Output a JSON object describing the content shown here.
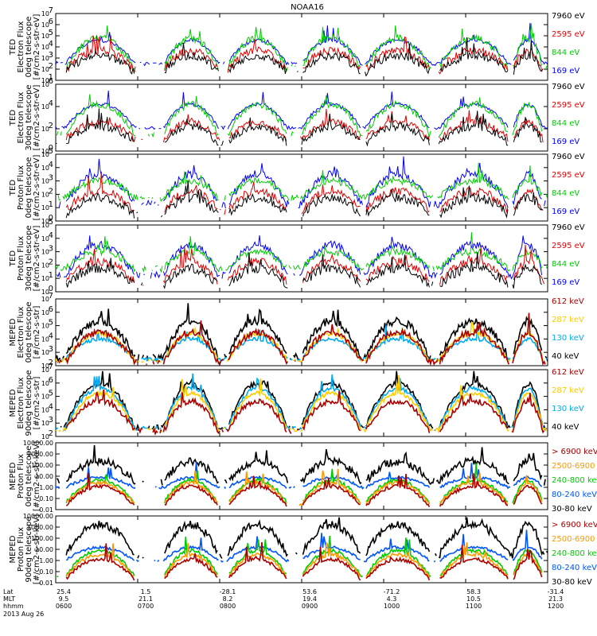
{
  "title": "NOAA16",
  "date_label": "2013 Aug 26",
  "x_axis": {
    "row_labels": [
      "Lat",
      "MLT",
      "hhmm"
    ],
    "tick_times": [
      "0600",
      "0700",
      "0800",
      "0900",
      "1000",
      "1100",
      "1200"
    ],
    "lat_values": [
      "25.4",
      "1.5",
      "-28.1",
      "53.6",
      "-71.2",
      "58.3",
      "-31.4"
    ],
    "mlt_values": [
      "9.5",
      "21.1",
      "8.2",
      "19.4",
      "4.3",
      "10.5",
      "21.3"
    ]
  },
  "colors": {
    "black": "#000000",
    "blue": "#0000ff",
    "red": "#e00000",
    "green": "#00cc00",
    "maroon": "#aa0000",
    "yellow": "#ffcc00",
    "cyan": "#00aaee",
    "orange": "#ff9900",
    "dgreen": "#00cc00",
    "lblue": "#0055ff"
  },
  "chart_data": [
    {
      "type": "line",
      "panel": "ted-electron-0deg",
      "ylabel": [
        "TED",
        "Electron Flux",
        "0deg telescope",
        "[#/cm2-s-str-eV]"
      ],
      "ylim": [
        1,
        10000000
      ],
      "yscale": "log",
      "ytick_labels": [
        "10^1",
        "10^2",
        "10^3",
        "10^4",
        "10^5",
        "10^6",
        "10^7"
      ],
      "ytick_exponents": [
        1,
        2,
        3,
        4,
        5,
        6,
        7
      ],
      "series": [
        {
          "name": "7960 eV",
          "color": "#000000"
        },
        {
          "name": "2595 eV",
          "color": "#e00000"
        },
        {
          "name": "844 eV",
          "color": "#00cc00"
        },
        {
          "name": "169 eV",
          "color": "#0000ff"
        }
      ]
    },
    {
      "type": "line",
      "panel": "ted-electron-30deg",
      "ylabel": [
        "TED",
        "Electron Flux",
        "30deg telescope",
        "[#/cm2-s-str-eV]"
      ],
      "ylim": [
        1,
        1000000
      ],
      "yscale": "log",
      "ytick_labels": [
        "10^0",
        "10^2",
        "10^4",
        "10^6"
      ],
      "ytick_exponents": [
        0,
        2,
        4,
        6
      ],
      "series": [
        {
          "name": "7960 eV",
          "color": "#000000"
        },
        {
          "name": "2595 eV",
          "color": "#e00000"
        },
        {
          "name": "844 eV",
          "color": "#00cc00"
        },
        {
          "name": "169 eV",
          "color": "#0000ff"
        }
      ]
    },
    {
      "type": "line",
      "panel": "ted-proton-0deg",
      "ylabel": [
        "TED",
        "Proton Flux",
        "0deg telescope",
        "[#/cm2-s-str-eV]"
      ],
      "ylim": [
        1,
        100000
      ],
      "yscale": "log",
      "ytick_labels": [
        "10^0",
        "10^1",
        "10^2",
        "10^3",
        "10^4",
        "10^5"
      ],
      "ytick_exponents": [
        0,
        1,
        2,
        3,
        4,
        5
      ],
      "series": [
        {
          "name": "7960 eV",
          "color": "#000000"
        },
        {
          "name": "2595 eV",
          "color": "#e00000"
        },
        {
          "name": "844 eV",
          "color": "#00cc00"
        },
        {
          "name": "169 eV",
          "color": "#0000ff"
        }
      ]
    },
    {
      "type": "line",
      "panel": "ted-proton-30deg",
      "ylabel": [
        "TED",
        "Proton Flux",
        "30deg telescope",
        "[#/cm2-s-str-eV]"
      ],
      "ylim": [
        1,
        100000
      ],
      "yscale": "log",
      "ytick_labels": [
        "10^0",
        "10^1",
        "10^2",
        "10^3",
        "10^4",
        "10^5"
      ],
      "ytick_exponents": [
        0,
        1,
        2,
        3,
        4,
        5
      ],
      "series": [
        {
          "name": "7960 eV",
          "color": "#000000"
        },
        {
          "name": "2595 eV",
          "color": "#e00000"
        },
        {
          "name": "844 eV",
          "color": "#00cc00"
        },
        {
          "name": "169 eV",
          "color": "#0000ff"
        }
      ]
    },
    {
      "type": "line",
      "panel": "meped-electron-0deg",
      "ylabel": [
        "MEPED",
        "Electron Flux",
        "0deg telescope",
        "[#/cm2-s-str]"
      ],
      "ylim": [
        100,
        10000000
      ],
      "yscale": "log",
      "ytick_labels": [
        "10^2",
        "10^3",
        "10^4",
        "10^5",
        "10^6",
        "10^7"
      ],
      "ytick_exponents": [
        2,
        3,
        4,
        5,
        6,
        7
      ],
      "series": [
        {
          "name": "612 keV",
          "color": "#aa0000"
        },
        {
          "name": "287 keV",
          "color": "#ffcc00"
        },
        {
          "name": "130 keV",
          "color": "#00aaee"
        },
        {
          "name": "40 keV",
          "color": "#000000"
        }
      ]
    },
    {
      "type": "line",
      "panel": "meped-electron-90deg",
      "ylabel": [
        "MEPED",
        "Electron Flux",
        "90deg telescope",
        "[#/cm2-s-str]"
      ],
      "ylim": [
        100,
        10000000
      ],
      "yscale": "log",
      "ytick_labels": [
        "10^2",
        "10^3",
        "10^4",
        "10^5",
        "10^6",
        "10^7"
      ],
      "ytick_exponents": [
        2,
        3,
        4,
        5,
        6,
        7
      ],
      "series": [
        {
          "name": "612 keV",
          "color": "#aa0000"
        },
        {
          "name": "287 keV",
          "color": "#ffcc00"
        },
        {
          "name": "130 keV",
          "color": "#00aaee"
        },
        {
          "name": "40 keV",
          "color": "#000000"
        }
      ]
    },
    {
      "type": "line",
      "panel": "meped-proton-0deg",
      "ylabel": [
        "MEPED",
        "Proton Flux",
        "0deg telescope",
        "[#/cm2-s-str-keV]"
      ],
      "ylim": [
        0.01,
        10000
      ],
      "yscale": "log",
      "ytick_labels": [
        "0.01",
        "0.10",
        "1.00",
        "10.00",
        "100.00",
        "1000.00",
        "10000.00"
      ],
      "ytick_exponents": [
        -2,
        -1,
        0,
        1,
        2,
        3,
        4
      ],
      "series": [
        {
          "name": "> 6900 keV",
          "color": "#aa0000"
        },
        {
          "name": "2500-6900",
          "color": "#ff9900"
        },
        {
          "name": "240-800 keV",
          "color": "#00cc00"
        },
        {
          "name": "80-240 keV",
          "color": "#0055ff"
        },
        {
          "name": "30-80 keV",
          "color": "#000000"
        }
      ]
    },
    {
      "type": "line",
      "panel": "meped-proton-90deg",
      "ylabel": [
        "MEPED",
        "Proton Flux",
        "90deg telescope",
        "[#/cm2-s-str-keV]"
      ],
      "ylim": [
        0.01,
        10000
      ],
      "yscale": "log",
      "ytick_labels": [
        "0.01",
        "0.10",
        "1.00",
        "10.00",
        "100.00",
        "1000.00",
        "10000.00"
      ],
      "ytick_exponents": [
        -2,
        -1,
        0,
        1,
        2,
        3,
        4
      ],
      "series": [
        {
          "name": "> 6900 keV",
          "color": "#aa0000"
        },
        {
          "name": "2500-6900",
          "color": "#ff9900"
        },
        {
          "name": "240-800 keV",
          "color": "#00cc00"
        },
        {
          "name": "80-240 keV",
          "color": "#0055ff"
        },
        {
          "name": "30-80 keV",
          "color": "#000000"
        }
      ]
    }
  ]
}
